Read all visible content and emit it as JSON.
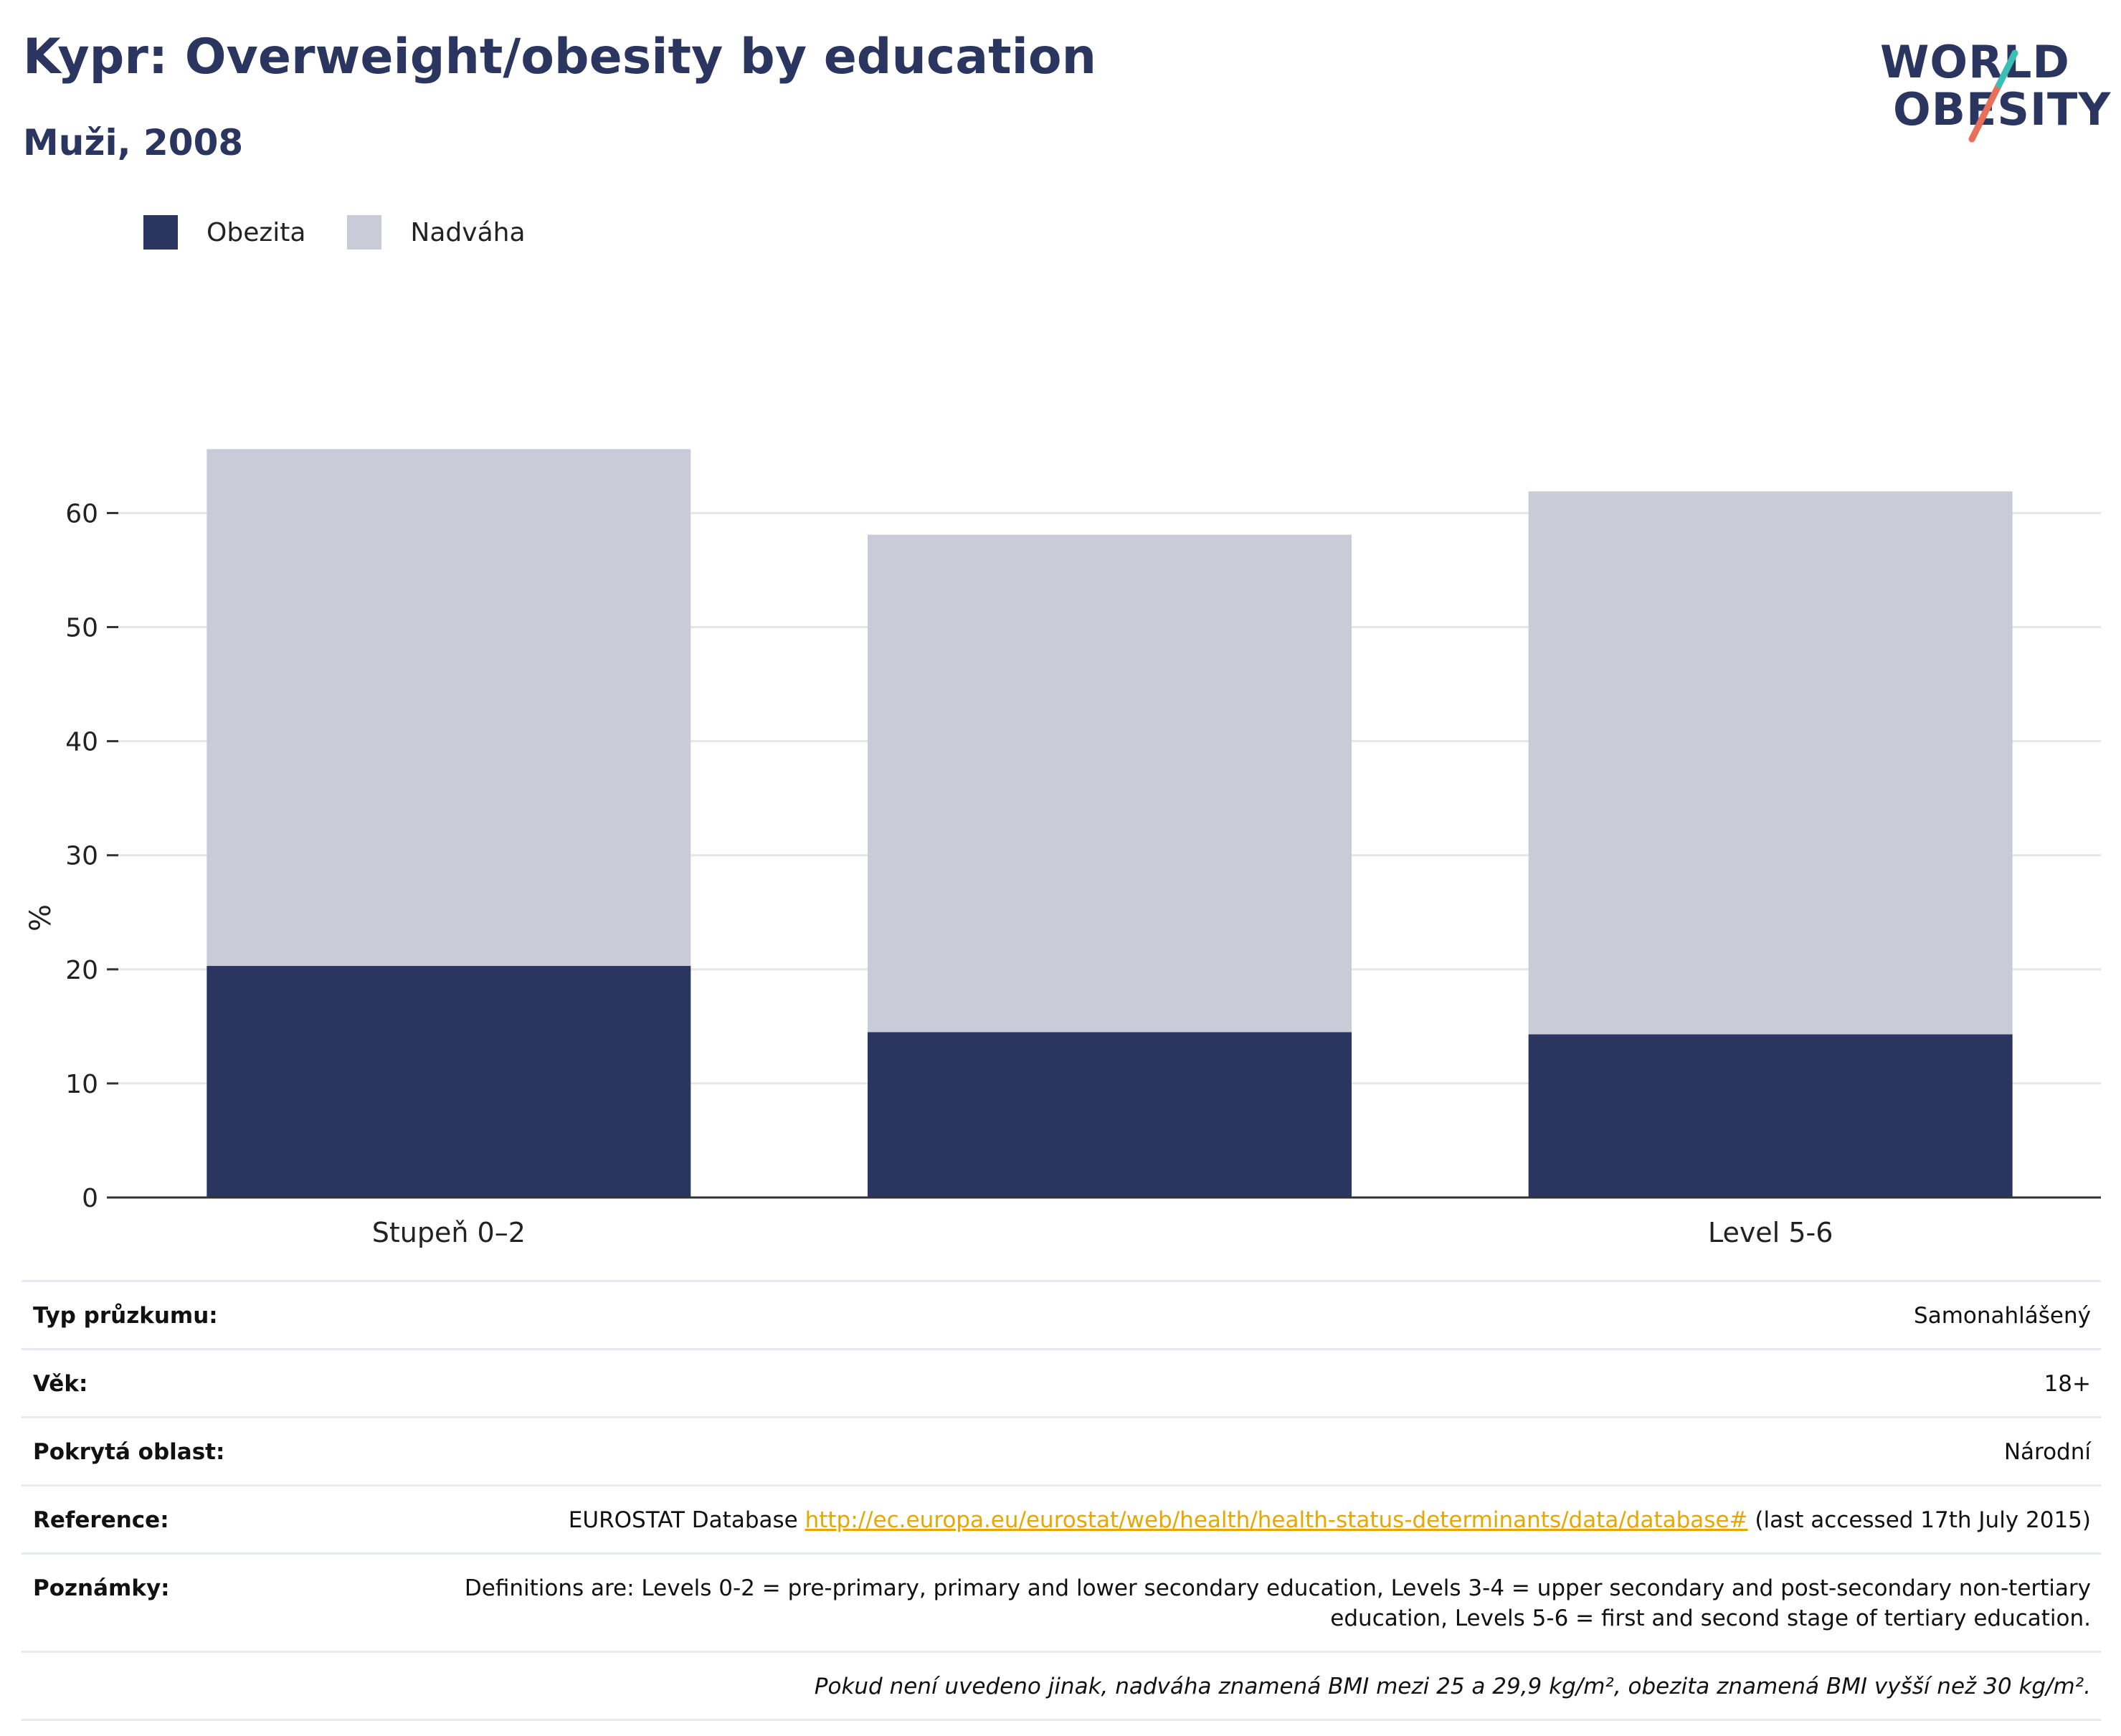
{
  "header": {
    "title": "Kypr: Overweight/obesity by education",
    "subtitle": "Muži, 2008"
  },
  "logo": {
    "line1": "WORLD",
    "line2": "OBESITY"
  },
  "colors": {
    "obesity": "#2a365f",
    "overweight": "#c9ccd8",
    "axis": "#333333",
    "grid": "#e6e6ea",
    "link": "#e6a800"
  },
  "chart_data": {
    "type": "bar",
    "stacked": true,
    "categories": [
      "Stupeň 0–2",
      "",
      "Level 5-6"
    ],
    "series": [
      {
        "name": "Obezita",
        "values": [
          20.3,
          14.5,
          14.3
        ]
      },
      {
        "name": "Nadváha",
        "values": [
          45.3,
          43.6,
          47.6
        ]
      }
    ],
    "ylabel": "%",
    "ylim": [
      0,
      66
    ],
    "yticks": [
      0,
      10,
      20,
      30,
      40,
      50,
      60
    ],
    "grid": true,
    "legend": "top-left"
  },
  "meta": [
    {
      "key": "Typ průzkumu:",
      "value": "Samonahlášený"
    },
    {
      "key": "Věk:",
      "value": "18+"
    },
    {
      "key": "Pokrytá oblast:",
      "value": "Národní"
    },
    {
      "key": "Reference:",
      "value_prefix": "EUROSTAT Database ",
      "link": "http://ec.europa.eu/eurostat/web/health/health-status-determinants/data/database#",
      "value_suffix": " (last accessed 17th July 2015)"
    },
    {
      "key": "Poznámky:",
      "value": "Definitions are: Levels 0-2 = pre-primary, primary and lower secondary education, Levels 3-4 = upper secondary and post-secondary non-tertiary education, Levels 5-6 = first and second stage of tertiary education."
    }
  ],
  "footnote": "Pokud není uvedeno jinak, nadváha znamená BMI mezi 25 a 29,9 kg/m², obezita znamená BMI vyšší než 30 kg/m²."
}
